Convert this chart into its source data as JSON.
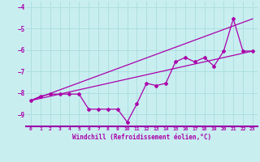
{
  "xlabel": "Windchill (Refroidissement éolien,°C)",
  "background_color": "#c8eef0",
  "line_color": "#aa00aa",
  "grid_color": "#aadddd",
  "axis_line_color": "#9900aa",
  "xlim": [
    -0.5,
    23.5
  ],
  "ylim": [
    -9.55,
    -3.75
  ],
  "xticks": [
    0,
    1,
    2,
    3,
    4,
    5,
    6,
    7,
    8,
    9,
    10,
    11,
    12,
    13,
    14,
    15,
    16,
    17,
    18,
    19,
    20,
    21,
    22,
    23
  ],
  "yticks": [
    -9,
    -8,
    -7,
    -6,
    -5,
    -4
  ],
  "series1_x": [
    0,
    1,
    2,
    3,
    4,
    5,
    6,
    7,
    8,
    9,
    10,
    11,
    12,
    13,
    14,
    15,
    16,
    17,
    18,
    19,
    20,
    21,
    22,
    23
  ],
  "series1_y": [
    -8.35,
    -8.15,
    -8.05,
    -8.05,
    -8.05,
    -8.05,
    -8.75,
    -8.75,
    -8.75,
    -8.75,
    -9.35,
    -8.5,
    -7.55,
    -7.65,
    -7.55,
    -6.55,
    -6.35,
    -6.55,
    -6.35,
    -6.75,
    -6.05,
    -4.55,
    -6.05,
    -6.05
  ],
  "series2_x": [
    0,
    23
  ],
  "series2_y": [
    -8.35,
    -6.05
  ],
  "series3_x": [
    0,
    23
  ],
  "series3_y": [
    -8.35,
    -4.55
  ]
}
